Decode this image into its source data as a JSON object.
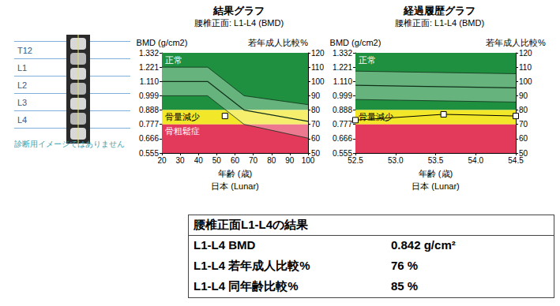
{
  "chart_data": [
    {
      "type": "line",
      "title": "結果グラフ",
      "subtitle": "腰椎正面: L1-L4 (BMD)",
      "xlabel": "年齢 (歳)",
      "x_sublabel": "日本 (Lunar)",
      "ylabel": "BMD (g/cm2)",
      "y2label": "若年成人比較%",
      "xlim": [
        20,
        100
      ],
      "xticks": [
        20,
        30,
        40,
        50,
        60,
        70,
        80,
        90,
        100
      ],
      "ylim": [
        0.555,
        1.332
      ],
      "yticks": [
        0.555,
        0.666,
        0.777,
        0.888,
        0.999,
        {
          "value": 1.11,
          "label": "1.110"
        },
        1.221,
        1.332
      ],
      "y2lim": [
        50,
        120
      ],
      "y2ticks": [
        50,
        60,
        70,
        80,
        90,
        100,
        110,
        120
      ],
      "grid": false,
      "zones": [
        {
          "label": "正常",
          "from": 0.888,
          "to": 1.332,
          "color": "#1f9040"
        },
        {
          "label": "骨量減少",
          "from": 0.777,
          "to": 0.888,
          "color": "#f2e829"
        },
        {
          "label": "骨粗鬆症",
          "from": 0.555,
          "to": 0.777,
          "color": "#e33a5c"
        }
      ],
      "reference": {
        "x": [
          20,
          45,
          65,
          100
        ],
        "upper": [
          1.221,
          1.221,
          0.999,
          0.93
        ],
        "mean": [
          1.11,
          1.11,
          0.888,
          0.8
        ],
        "lower": [
          0.999,
          0.999,
          0.777,
          0.67
        ],
        "color": "#10301a"
      },
      "series": [
        {
          "x": [
            54.5
          ],
          "values": [
            0.842
          ],
          "marker": "square",
          "color": "#000000"
        }
      ]
    },
    {
      "type": "line",
      "title": "経過履歴グラフ",
      "subtitle": "腰椎正面: L1-L4 (BMD)",
      "xlabel": "年齢 (歳)",
      "x_sublabel": "日本 (Lunar)",
      "ylabel": "BMD (g/cm2)",
      "y2label": "若年成人比較%",
      "xlim": [
        52.5,
        54.5
      ],
      "xticks": [
        52.5,
        {
          "value": 53,
          "label": "53.0"
        },
        53.5,
        {
          "value": 54,
          "label": "54.0"
        },
        54.5
      ],
      "ylim": [
        0.555,
        1.332
      ],
      "yticks": [
        0.555,
        0.666,
        0.777,
        0.888,
        0.999,
        {
          "value": 1.11,
          "label": "1.110"
        },
        1.221,
        1.332
      ],
      "y2lim": [
        50,
        120
      ],
      "y2ticks": [
        50,
        60,
        70,
        80,
        90,
        100,
        110,
        120
      ],
      "grid": false,
      "zones": [
        {
          "label": "正常",
          "from": 0.888,
          "to": 1.332,
          "color": "#1f9040"
        },
        {
          "label": "骨量減少",
          "from": 0.777,
          "to": 0.888,
          "color": "#f2e829"
        },
        {
          "from": 0.555,
          "to": 0.777,
          "color": "#e33a5c"
        }
      ],
      "reference": {
        "x": [
          52.5,
          54.5
        ],
        "upper": [
          1.19,
          1.17
        ],
        "mean": [
          1.08,
          1.06
        ],
        "lower": [
          0.97,
          0.95
        ],
        "color": "#10301a"
      },
      "series": [
        {
          "x": [
            52.5,
            53.6,
            54.5
          ],
          "values": [
            0.81,
            0.855,
            0.842
          ],
          "marker": "square",
          "color": "#000000"
        }
      ]
    }
  ],
  "spine_panel": {
    "labels": [
      "T12",
      "L1",
      "L2",
      "L3",
      "L4"
    ],
    "note": "診断用イメージではありません"
  },
  "results_table": {
    "title": "腰椎正面L1-L4の結果",
    "rows": [
      [
        "L1-L4 BMD",
        "0.842 g/cm²"
      ],
      [
        "L1-L4 若年成人比較%",
        "76 %"
      ],
      [
        "L1-L4 同年齢比較%",
        "85 %"
      ]
    ]
  }
}
